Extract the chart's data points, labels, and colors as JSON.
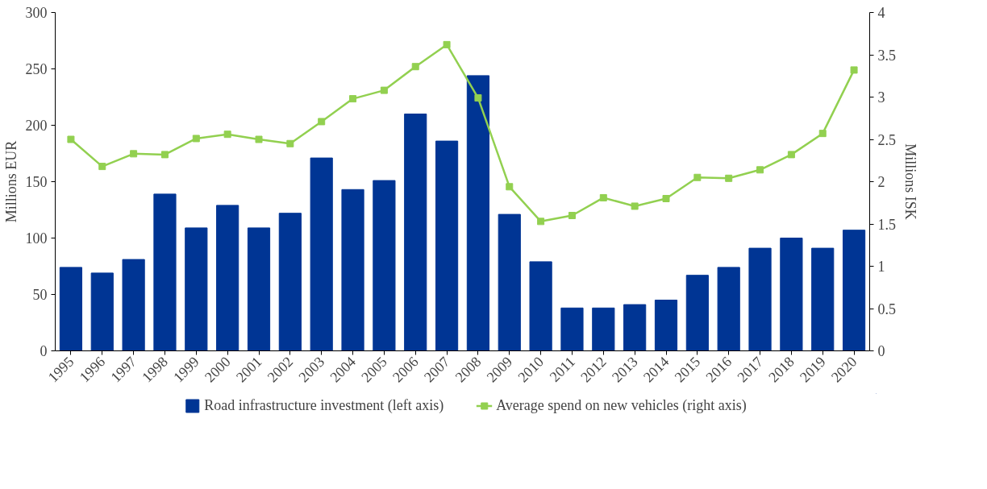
{
  "chart_data": {
    "type": "bar",
    "categories": [
      "1995",
      "1996",
      "1997",
      "1998",
      "1999",
      "2000",
      "2001",
      "2002",
      "2003",
      "2004",
      "2005",
      "2006",
      "2007",
      "2008",
      "2009",
      "2010",
      "2011",
      "2012",
      "2013",
      "2014",
      "2015",
      "2016",
      "2017",
      "2018",
      "2019",
      "2020"
    ],
    "ylabel": "Millions EUR",
    "y2label": "Millions ISK",
    "ylim": [
      0,
      300
    ],
    "yticks": [
      0,
      50,
      100,
      150,
      200,
      250,
      300
    ],
    "y2lim": [
      0,
      4
    ],
    "y2ticks": [
      0,
      0.5,
      1,
      1.5,
      2,
      2.5,
      3,
      3.5,
      4
    ],
    "grid": false,
    "legend": "bottom",
    "marker": "square",
    "line_style": "solid",
    "series": [
      {
        "name": "Road infrastructure investment (left axis)",
        "color": "#003594",
        "values": [
          74,
          69,
          81,
          139,
          109,
          129,
          109,
          122,
          171,
          143,
          151,
          210,
          186,
          244,
          121,
          79,
          38,
          38,
          41,
          45,
          67,
          74,
          91,
          100,
          91,
          107
        ]
      },
      {
        "name": "Average spend on new vehicles (right axis)",
        "type": "line",
        "axis": "y2",
        "color": "#92d050",
        "values": [
          2.5,
          2.18,
          2.33,
          2.32,
          2.51,
          2.56,
          2.5,
          2.45,
          2.71,
          2.98,
          3.08,
          3.36,
          3.62,
          2.99,
          1.94,
          1.53,
          1.6,
          1.81,
          1.71,
          1.8,
          2.05,
          2.04,
          2.14,
          2.32,
          2.57,
          3.32
        ]
      }
    ]
  }
}
